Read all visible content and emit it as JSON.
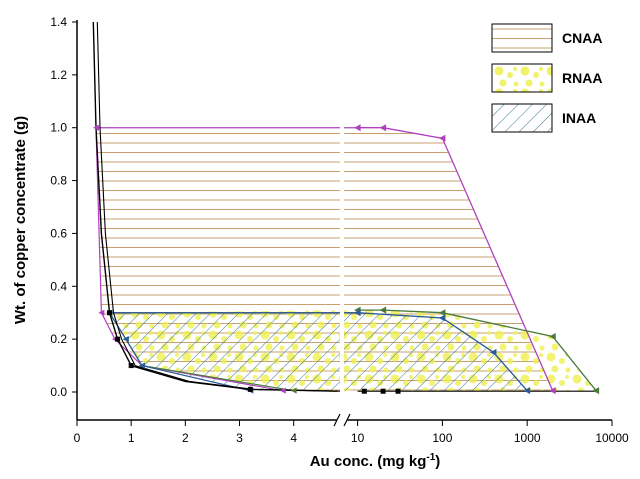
{
  "chart_data": {
    "type": "area",
    "xlabel": "Au conc. (mg kg",
    "xlabel_sup": "-1",
    "xlabel_end": ")",
    "ylabel": "Wt. of copper concentrate (g)",
    "ylim": [
      0,
      1.4
    ],
    "yticks": [
      "0.0",
      "0.2",
      "0.4",
      "0.6",
      "0.8",
      "1.0",
      "1.2",
      "1.4"
    ],
    "x_axis": {
      "broken": true,
      "left_segment": {
        "scale": "linear",
        "range": [
          0,
          4.8
        ],
        "ticks": [
          "0",
          "1",
          "2",
          "3",
          "4"
        ]
      },
      "right_segment": {
        "scale": "log",
        "range": [
          7.5,
          10000
        ],
        "ticks": [
          "10",
          "100",
          "1000",
          "10000"
        ]
      }
    },
    "legend": {
      "position": "top-right",
      "entries": [
        {
          "label": "CNAA",
          "fill": "horizontal-lines",
          "color": "#c8a070"
        },
        {
          "label": "RNAA",
          "fill": "yellow-dots",
          "color": "#eef050"
        },
        {
          "label": "INAA",
          "fill": "diagonal-hatch",
          "color": "#3e7a8e"
        }
      ]
    },
    "series": [
      {
        "name": "CNAA",
        "color": "#c8a070",
        "line_color": "#b040c0",
        "low_limit": [
          {
            "x": 0.35,
            "y": 1.0
          },
          {
            "x": 0.45,
            "y": 0.3
          },
          {
            "x": 0.7,
            "y": 0.2
          },
          {
            "x": 1.2,
            "y": 0.1
          },
          {
            "x": 3.8,
            "y": 0.005
          }
        ],
        "high_limit": [
          {
            "x": 10,
            "y": 1.0
          },
          {
            "x": 20,
            "y": 1.0
          },
          {
            "x": 100,
            "y": 0.96
          },
          {
            "x": 2000,
            "y": 0.005
          }
        ],
        "y_range": [
          0,
          1.0
        ]
      },
      {
        "name": "RNAA",
        "color": "#eef050",
        "line_color": "#4a7a3a",
        "low_limit": [
          {
            "x": 0.6,
            "y": 0.3
          },
          {
            "x": 0.9,
            "y": 0.2
          },
          {
            "x": 1.2,
            "y": 0.1
          },
          {
            "x": 4.0,
            "y": 0.005
          }
        ],
        "high_limit": [
          {
            "x": 10,
            "y": 0.31
          },
          {
            "x": 20,
            "y": 0.31
          },
          {
            "x": 100,
            "y": 0.3
          },
          {
            "x": 2000,
            "y": 0.21
          },
          {
            "x": 6500,
            "y": 0.005
          }
        ],
        "y_range": [
          0,
          0.3
        ]
      },
      {
        "name": "INAA",
        "color": "#3e7a8e",
        "line_color": "#2a5a9a",
        "low_limit": [
          {
            "x": 0.6,
            "y": 0.3
          },
          {
            "x": 0.9,
            "y": 0.2
          },
          {
            "x": 1.2,
            "y": 0.1
          },
          {
            "x": 3.2,
            "y": 0.005
          }
        ],
        "high_limit": [
          {
            "x": 10,
            "y": 0.3
          },
          {
            "x": 100,
            "y": 0.28
          },
          {
            "x": 400,
            "y": 0.15
          },
          {
            "x": 1000,
            "y": 0.005
          }
        ],
        "y_range": [
          0,
          0.3
        ]
      }
    ],
    "curve": {
      "color": "#000000",
      "points": [
        {
          "x": 0.3,
          "y": 1.4
        },
        {
          "x": 0.35,
          "y": 1.0
        },
        {
          "x": 0.45,
          "y": 0.6
        },
        {
          "x": 0.6,
          "y": 0.3
        },
        {
          "x": 0.75,
          "y": 0.2
        },
        {
          "x": 1.0,
          "y": 0.1
        },
        {
          "x": 2.0,
          "y": 0.04
        },
        {
          "x": 3.2,
          "y": 0.01
        },
        {
          "x": 4.8,
          "y": 0.003
        }
      ],
      "markers": [
        {
          "x": 0.6,
          "y": 0.3
        },
        {
          "x": 0.75,
          "y": 0.2
        },
        {
          "x": 1.0,
          "y": 0.1
        },
        {
          "x": 3.2,
          "y": 0.01
        },
        {
          "x": 12,
          "y": 0.003
        },
        {
          "x": 20,
          "y": 0.003
        },
        {
          "x": 30,
          "y": 0.003
        }
      ]
    }
  }
}
